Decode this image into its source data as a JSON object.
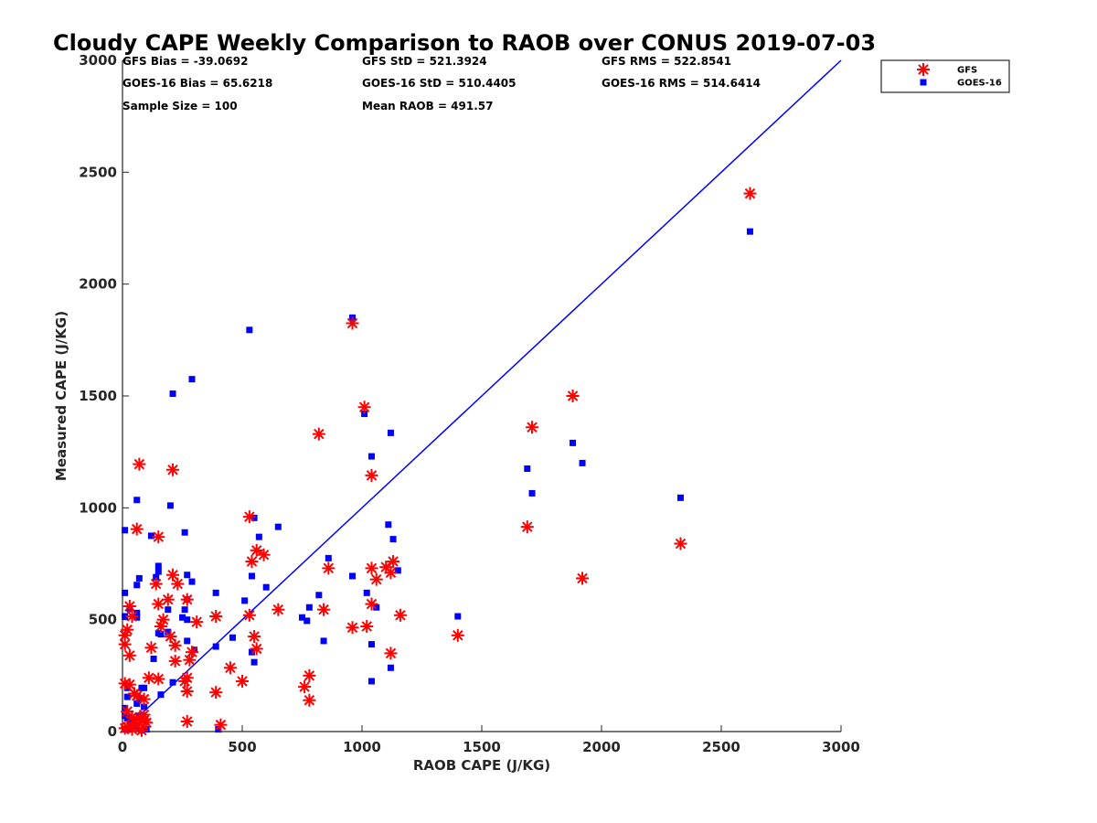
{
  "chart_data": {
    "type": "scatter",
    "title": "Cloudy CAPE Weekly Comparison to RAOB over CONUS 2019-07-03",
    "xlabel": "RAOB CAPE (J/KG)",
    "ylabel": "Measured CAPE (J/KG)",
    "xlim": [
      0,
      3000
    ],
    "ylim": [
      0,
      3000
    ],
    "xticks": [
      "0",
      "500",
      "1000",
      "1500",
      "2000",
      "2500",
      "3000"
    ],
    "yticks": [
      "0",
      "500",
      "1000",
      "1500",
      "2000",
      "2500",
      "3000"
    ],
    "grid": false,
    "legend_position": "top-right",
    "reference_line": {
      "from": [
        0,
        0
      ],
      "to": [
        3000,
        3000
      ],
      "color": "#0000ff"
    },
    "stats": [
      [
        "GFS Bias = -39.0692",
        "GFS StD = 521.3924",
        "GFS RMS = 522.8541"
      ],
      [
        "GOES-16 Bias = 65.6218",
        "GOES-16 StD = 510.4405",
        "GOES-16 RMS = 514.6414"
      ],
      [
        "Sample Size = 100",
        "Mean RAOB = 491.57",
        ""
      ]
    ],
    "series": [
      {
        "name": "GFS",
        "marker": "asterisk",
        "color": "#ff0000",
        "points": [
          [
            2620,
            2405
          ],
          [
            1880,
            1500
          ],
          [
            1710,
            1360
          ],
          [
            1690,
            915
          ],
          [
            1920,
            685
          ],
          [
            2330,
            840
          ],
          [
            1400,
            430
          ],
          [
            960,
            1825
          ],
          [
            1010,
            1450
          ],
          [
            1040,
            1145
          ],
          [
            820,
            1330
          ],
          [
            530,
            960
          ],
          [
            560,
            810
          ],
          [
            540,
            760
          ],
          [
            590,
            790
          ],
          [
            860,
            730
          ],
          [
            840,
            545
          ],
          [
            650,
            545
          ],
          [
            960,
            465
          ],
          [
            1020,
            470
          ],
          [
            1040,
            570
          ],
          [
            1060,
            680
          ],
          [
            1040,
            730
          ],
          [
            1100,
            735
          ],
          [
            1120,
            710
          ],
          [
            1130,
            760
          ],
          [
            1160,
            520
          ],
          [
            1120,
            350
          ],
          [
            780,
            250
          ],
          [
            760,
            200
          ],
          [
            780,
            140
          ],
          [
            550,
            425
          ],
          [
            560,
            370
          ],
          [
            530,
            520
          ],
          [
            500,
            225
          ],
          [
            450,
            285
          ],
          [
            390,
            515
          ],
          [
            390,
            175
          ],
          [
            410,
            30
          ],
          [
            310,
            490
          ],
          [
            290,
            355
          ],
          [
            280,
            320
          ],
          [
            270,
            590
          ],
          [
            270,
            240
          ],
          [
            270,
            180
          ],
          [
            260,
            225
          ],
          [
            270,
            45
          ],
          [
            230,
            660
          ],
          [
            210,
            700
          ],
          [
            190,
            590
          ],
          [
            170,
            500
          ],
          [
            160,
            470
          ],
          [
            150,
            570
          ],
          [
            140,
            660
          ],
          [
            150,
            870
          ],
          [
            210,
            1170
          ],
          [
            70,
            1195
          ],
          [
            60,
            905
          ],
          [
            30,
            560
          ],
          [
            40,
            515
          ],
          [
            20,
            455
          ],
          [
            10,
            430
          ],
          [
            10,
            390
          ],
          [
            30,
            340
          ],
          [
            200,
            425
          ],
          [
            220,
            385
          ],
          [
            220,
            315
          ],
          [
            120,
            375
          ],
          [
            110,
            240
          ],
          [
            150,
            235
          ],
          [
            90,
            145
          ],
          [
            60,
            160
          ],
          [
            10,
            215
          ],
          [
            30,
            210
          ],
          [
            50,
            170
          ],
          [
            20,
            90
          ],
          [
            40,
            65
          ],
          [
            70,
            60
          ],
          [
            90,
            50
          ],
          [
            60,
            30
          ],
          [
            20,
            20
          ],
          [
            10,
            15
          ],
          [
            40,
            10
          ],
          [
            80,
            5
          ],
          [
            100,
            40
          ],
          [
            90,
            75
          ],
          [
            50,
            40
          ]
        ]
      },
      {
        "name": "GOES-16",
        "marker": "square",
        "color": "#0000ff",
        "points": [
          [
            2620,
            2235
          ],
          [
            2330,
            1045
          ],
          [
            1880,
            1290
          ],
          [
            1920,
            1200
          ],
          [
            1690,
            1175
          ],
          [
            1710,
            1065
          ],
          [
            1400,
            515
          ],
          [
            960,
            1850
          ],
          [
            1010,
            1420
          ],
          [
            1040,
            1230
          ],
          [
            1120,
            1335
          ],
          [
            1110,
            925
          ],
          [
            1130,
            860
          ],
          [
            1150,
            720
          ],
          [
            1020,
            620
          ],
          [
            1060,
            555
          ],
          [
            1040,
            390
          ],
          [
            1040,
            225
          ],
          [
            1120,
            285
          ],
          [
            960,
            695
          ],
          [
            860,
            775
          ],
          [
            820,
            610
          ],
          [
            780,
            555
          ],
          [
            750,
            510
          ],
          [
            770,
            495
          ],
          [
            840,
            405
          ],
          [
            650,
            915
          ],
          [
            600,
            645
          ],
          [
            570,
            870
          ],
          [
            550,
            955
          ],
          [
            540,
            695
          ],
          [
            510,
            585
          ],
          [
            540,
            355
          ],
          [
            550,
            310
          ],
          [
            530,
            1795
          ],
          [
            290,
            1575
          ],
          [
            210,
            1510
          ],
          [
            200,
            1010
          ],
          [
            260,
            890
          ],
          [
            270,
            700
          ],
          [
            290,
            670
          ],
          [
            390,
            620
          ],
          [
            270,
            590
          ],
          [
            260,
            545
          ],
          [
            250,
            510
          ],
          [
            270,
            500
          ],
          [
            270,
            405
          ],
          [
            300,
            365
          ],
          [
            390,
            380
          ],
          [
            460,
            420
          ],
          [
            190,
            545
          ],
          [
            190,
            445
          ],
          [
            160,
            435
          ],
          [
            150,
            440
          ],
          [
            140,
            690
          ],
          [
            150,
            715
          ],
          [
            150,
            740
          ],
          [
            120,
            875
          ],
          [
            60,
            1035
          ],
          [
            70,
            685
          ],
          [
            60,
            655
          ],
          [
            60,
            530
          ],
          [
            60,
            510
          ],
          [
            30,
            550
          ],
          [
            10,
            620
          ],
          [
            10,
            900
          ],
          [
            10,
            515
          ],
          [
            130,
            325
          ],
          [
            160,
            165
          ],
          [
            210,
            220
          ],
          [
            90,
            195
          ],
          [
            80,
            195
          ],
          [
            90,
            110
          ],
          [
            70,
            150
          ],
          [
            60,
            125
          ],
          [
            20,
            195
          ],
          [
            20,
            155
          ],
          [
            10,
            105
          ],
          [
            10,
            70
          ],
          [
            20,
            60
          ],
          [
            30,
            40
          ],
          [
            50,
            30
          ],
          [
            60,
            20
          ],
          [
            10,
            10
          ],
          [
            30,
            10
          ],
          [
            100,
            10
          ],
          [
            400,
            10
          ],
          [
            80,
            5
          ],
          [
            40,
            50
          ],
          [
            70,
            70
          ]
        ]
      }
    ]
  }
}
